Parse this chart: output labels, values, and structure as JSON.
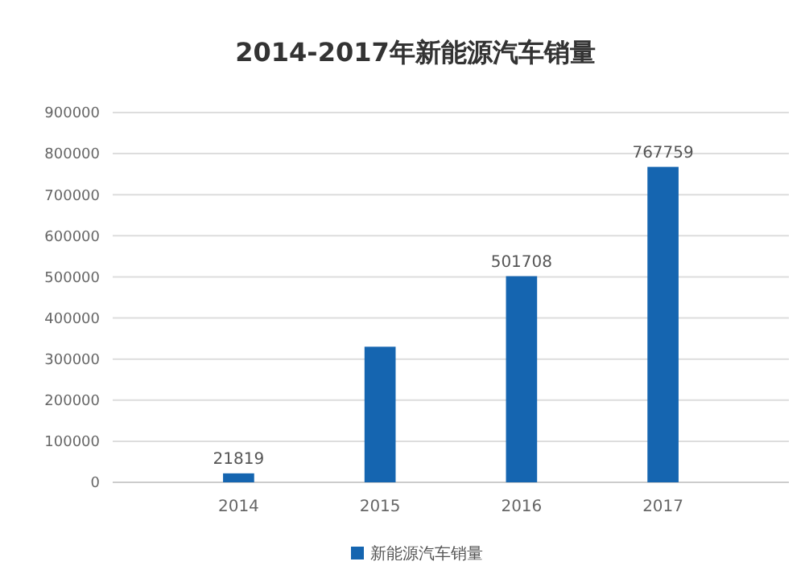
{
  "chart_data": {
    "type": "bar",
    "title": "2014-2017年新能源汽车销量",
    "categories": [
      "2014",
      "2015",
      "2016",
      "2017"
    ],
    "series": [
      {
        "name": "新能源汽车销量",
        "color": "#1565b0",
        "values": [
          21819,
          330000,
          501708,
          767759
        ],
        "value_labels": [
          "21819",
          null,
          "501708",
          "767759"
        ]
      }
    ],
    "ylim": [
      0,
      900000
    ],
    "yticks": [
      0,
      100000,
      200000,
      300000,
      400000,
      500000,
      600000,
      700000,
      800000,
      900000
    ],
    "grid": "y",
    "legend": "bottom"
  }
}
